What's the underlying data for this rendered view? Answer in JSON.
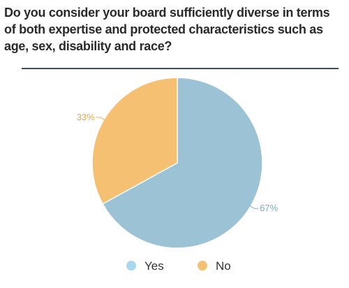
{
  "title": "Do you consider your board sufficiently diverse in terms of both expertise and protected characteristics such as age, sex, disability and race?",
  "chart_data": {
    "type": "pie",
    "slices": [
      {
        "name": "Yes",
        "value": 67,
        "label": "67%",
        "color": "#9cc3d5"
      },
      {
        "name": "No",
        "value": 33,
        "label": "33%",
        "color": "#f6c072"
      }
    ],
    "legend_placement": "bottom",
    "label_color": {
      "Yes": "#7aaec7",
      "No": "#e9a84d"
    }
  }
}
